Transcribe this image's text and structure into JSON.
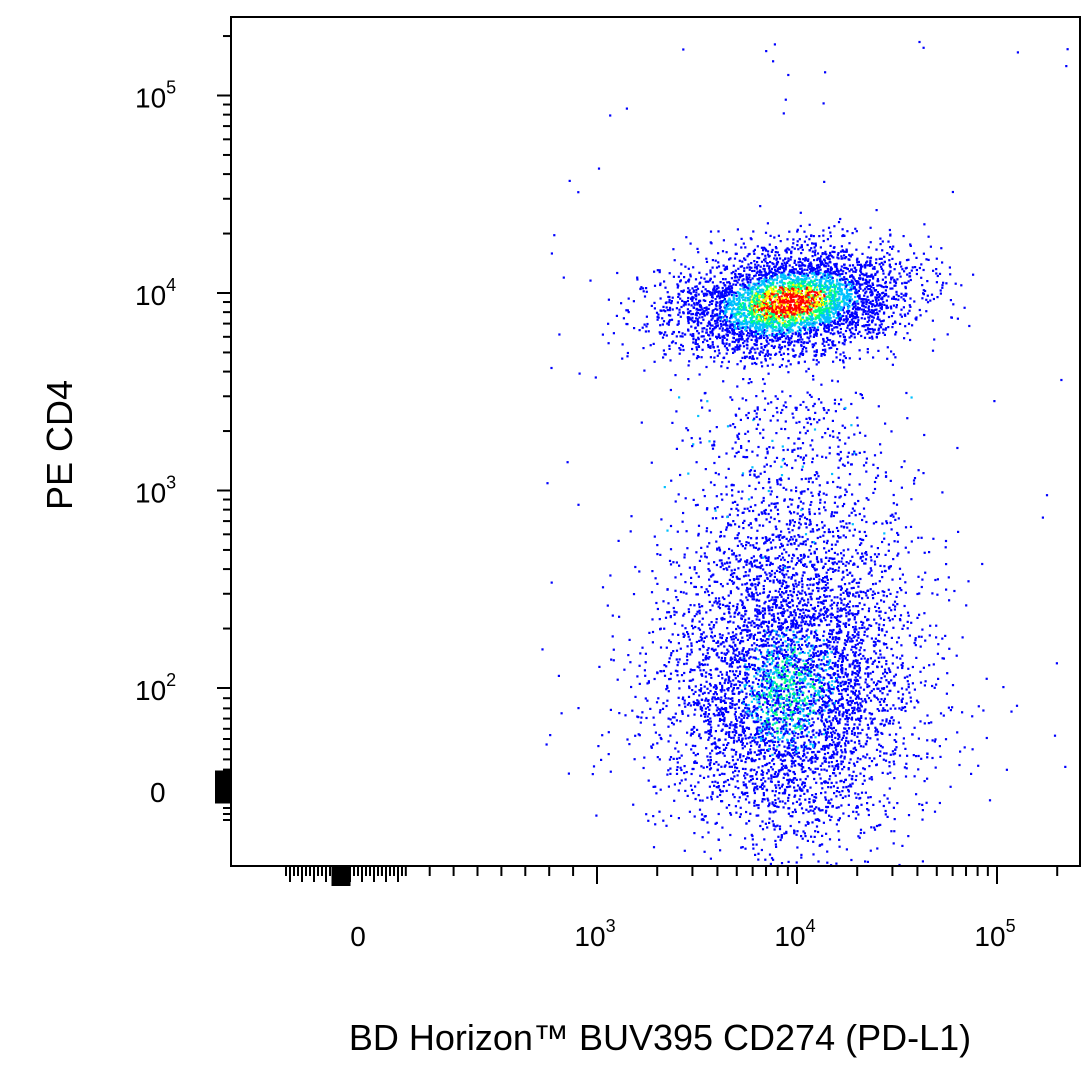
{
  "chart_data": {
    "type": "scatter",
    "title": "",
    "xlabel": "BD Horizon™ BUV395 CD274 (PD-L1)",
    "ylabel": "PE CD4",
    "x_scale": "biexponential",
    "y_scale": "biexponential",
    "xlim": [
      -1000,
      250000
    ],
    "ylim": [
      -60,
      250000
    ],
    "grid": false,
    "legend": "none",
    "colormap": [
      "#0000ff",
      "#00c0ff",
      "#00ff80",
      "#ffff00",
      "#ff0000"
    ],
    "x_ticks": [
      {
        "value": 0,
        "base": "0",
        "exp": ""
      },
      {
        "value": 1000,
        "base": "10",
        "exp": "3"
      },
      {
        "value": 10000,
        "base": "10",
        "exp": "4"
      },
      {
        "value": 100000,
        "base": "10",
        "exp": "5"
      }
    ],
    "y_ticks": [
      {
        "value": 0,
        "base": "0",
        "exp": ""
      },
      {
        "value": 100,
        "base": "10",
        "exp": "2"
      },
      {
        "value": 1000,
        "base": "10",
        "exp": "3"
      },
      {
        "value": 10000,
        "base": "10",
        "exp": "4"
      },
      {
        "value": 100000,
        "base": "10",
        "exp": "5"
      }
    ],
    "populations": [
      {
        "name": "",
        "center_x": 9000,
        "center_y": 9000,
        "spread_x_decades": 0.3,
        "spread_y_decades": 0.13,
        "peak_density": 1.0
      },
      {
        "name": "",
        "center_x": 9000,
        "center_y": 60,
        "spread_x_decades": 0.3,
        "spread_y_decades": 0.6,
        "peak_density": 0.5
      }
    ]
  }
}
